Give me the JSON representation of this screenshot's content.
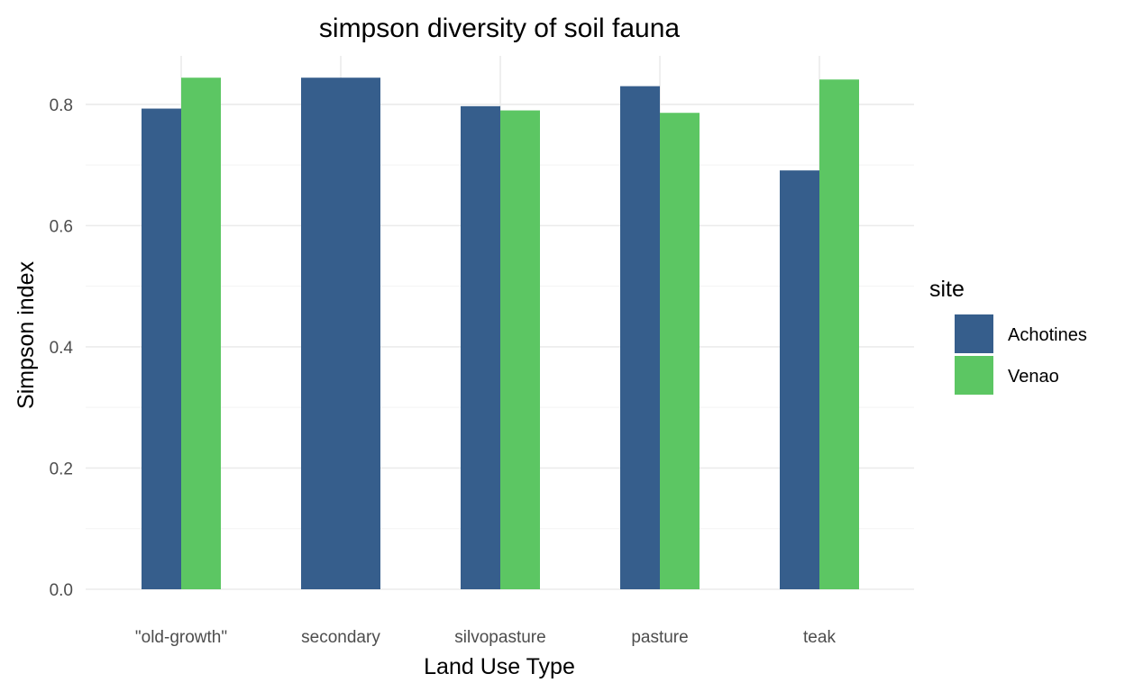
{
  "chart_data": {
    "type": "bar",
    "title": "simpson diversity of soil fauna",
    "xlabel": "Land Use Type",
    "ylabel": "Simpson index",
    "categories": [
      "\"old-growth\"",
      "secondary",
      "silvopasture",
      "pasture",
      "teak"
    ],
    "series": [
      {
        "name": "Achotines",
        "color": "#365e8c",
        "values": [
          0.793,
          0.844,
          0.797,
          0.83,
          0.691
        ]
      },
      {
        "name": "Venao",
        "color": "#5cc663",
        "values": [
          0.844,
          null,
          0.79,
          0.786,
          0.841
        ]
      }
    ],
    "ylim": [
      0,
      0.88
    ],
    "yticks": [
      0.0,
      0.2,
      0.4,
      0.6,
      0.8
    ],
    "ytick_labels": [
      "0.0",
      "0.2",
      "0.4",
      "0.6",
      "0.8"
    ],
    "grid": true,
    "legend": {
      "title": "site",
      "position": "right"
    }
  }
}
